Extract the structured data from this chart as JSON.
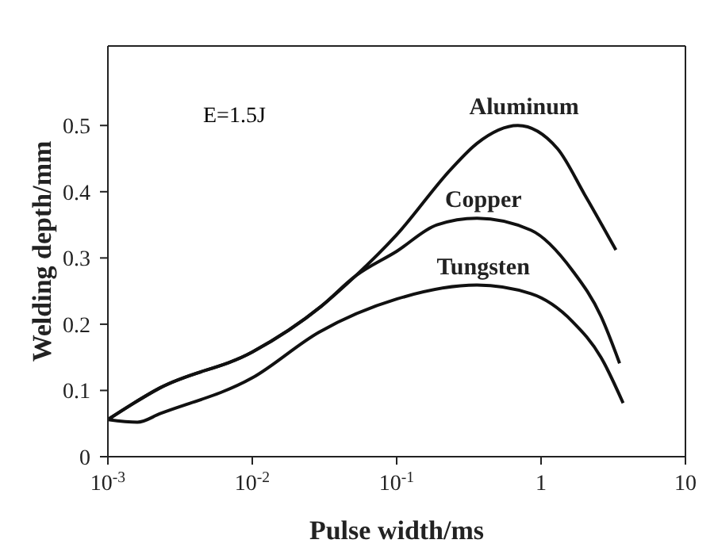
{
  "chart_data": {
    "type": "line",
    "xlabel": "Pulse width/ms",
    "ylabel": "Welding depth/mm",
    "annotations": [
      "E=1.5J"
    ],
    "log": "x",
    "xlim": [
      0.001,
      10
    ],
    "ylim": [
      0,
      0.62
    ],
    "xticks": [
      {
        "value": 0.001,
        "label": "10$^{-3}$"
      },
      {
        "value": 0.01,
        "label": "10$^{-2}$"
      },
      {
        "value": 0.1,
        "label": "10$^{-1}$"
      },
      1,
      10
    ],
    "yticks": [
      0,
      0.1,
      0.2,
      0.3,
      0.4,
      0.5
    ],
    "grid": false,
    "marker": "none",
    "line_style": "solid",
    "series": [
      {
        "name": "Aluminum",
        "color": "#111111",
        "x": [
          0.001,
          0.0023,
          0.01,
          0.03,
          0.052,
          0.1,
          0.24,
          0.36,
          0.69,
          1.3,
          2.0,
          3.3
        ],
        "values": [
          0.056,
          0.104,
          0.158,
          0.227,
          0.273,
          0.335,
          0.435,
          0.473,
          0.5,
          0.465,
          0.396,
          0.312
        ]
      },
      {
        "name": "Copper",
        "color": "#111111",
        "x": [
          0.001,
          0.0023,
          0.01,
          0.03,
          0.052,
          0.1,
          0.19,
          0.36,
          0.85,
          1.65,
          2.6,
          3.5
        ],
        "values": [
          0.056,
          0.104,
          0.158,
          0.227,
          0.273,
          0.31,
          0.35,
          0.36,
          0.342,
          0.281,
          0.212,
          0.141
        ]
      },
      {
        "name": "Tungsten",
        "color": "#111111",
        "x": [
          0.001,
          0.0016,
          0.0023,
          0.01,
          0.029,
          0.1,
          0.36,
          0.85,
          1.65,
          2.6,
          3.7
        ],
        "values": [
          0.056,
          0.052,
          0.065,
          0.119,
          0.188,
          0.238,
          0.259,
          0.246,
          0.204,
          0.15,
          0.081
        ]
      }
    ]
  }
}
